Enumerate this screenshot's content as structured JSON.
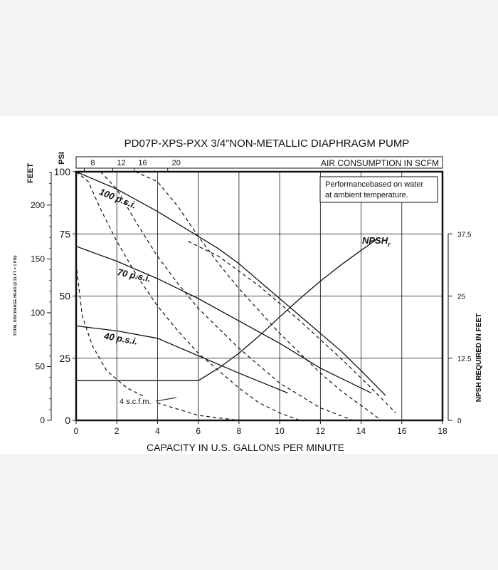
{
  "chart_data": {
    "type": "line",
    "title": "PD07P-XPS-PXX 3/4”NON-METALLIC DIAPHRAGM PUMP",
    "xlabel": "CAPACITY IN U.S. GALLONS PER MINUTE",
    "xlim": [
      0,
      18
    ],
    "x_ticks": [
      "0",
      "2",
      "4",
      "6",
      "8",
      "10",
      "12",
      "14",
      "16",
      "18"
    ],
    "y_left_outer": {
      "label": "FEET",
      "sublabel": "TOTAL DISCHARGE HEAD (2.31 FT = 1 PSI)",
      "ylim": [
        0,
        231
      ],
      "ticks": [
        {
          "value": 0,
          "label": "0"
        },
        {
          "value": 50,
          "label": "50"
        },
        {
          "value": 100,
          "label": "100"
        },
        {
          "value": 150,
          "label": "150"
        },
        {
          "value": 200,
          "label": "200"
        }
      ]
    },
    "y_left_inner": {
      "label": "PSI",
      "ylim": [
        0,
        100
      ],
      "ticks": [
        {
          "value": 0,
          "label": "0"
        },
        {
          "value": 25,
          "label": "25"
        },
        {
          "value": 50,
          "label": "50"
        },
        {
          "value": 75,
          "label": "75"
        },
        {
          "value": 100,
          "label": "100"
        }
      ]
    },
    "y_right": {
      "label": "NPSH REQUIRED IN FEET",
      "ylim": [
        0,
        50
      ],
      "ticks": [
        {
          "value": 0,
          "label": "0"
        },
        {
          "value": 12.5,
          "label": "12.5"
        },
        {
          "value": 25,
          "label": "25"
        },
        {
          "value": 37.5,
          "label": "37.5"
        }
      ]
    },
    "top_axis": {
      "label": "AIR CONSUMPTION IN SCFM",
      "ticks": [
        {
          "gpm": 0.4,
          "label": "8"
        },
        {
          "gpm": 1.8,
          "label": "12"
        },
        {
          "gpm": 2.85,
          "label": "16"
        },
        {
          "gpm": 4.5,
          "label": "20"
        }
      ]
    },
    "annotation": [
      "Performancebased on water",
      "at ambient temperature."
    ],
    "series": [
      {
        "name": "100 p.s.i.",
        "style": "solid",
        "label_text": "100 p.s.i.",
        "label_pos": [
          1.1,
          91
        ],
        "label_angle": 22,
        "x": [
          0,
          2,
          4,
          6,
          7,
          8,
          9,
          10,
          11,
          12,
          13,
          14,
          15.2
        ],
        "y": [
          100,
          93,
          84,
          74,
          69,
          63,
          56,
          49,
          42,
          35,
          28,
          20,
          10
        ]
      },
      {
        "name": "70 p.s.i.",
        "style": "solid",
        "label_text": "70 p.s.i.",
        "label_pos": [
          2.0,
          58.5
        ],
        "label_angle": 12,
        "x": [
          0,
          2,
          4,
          6,
          8,
          10,
          12,
          14.5
        ],
        "y": [
          70,
          64,
          57,
          49,
          40,
          31,
          21,
          11
        ]
      },
      {
        "name": "40 p.s.i.",
        "style": "solid",
        "label_text": "40 p.s.i.",
        "label_pos": [
          1.35,
          32.8
        ],
        "label_angle": 10,
        "x": [
          0,
          2,
          4,
          6,
          8,
          10.4
        ],
        "y": [
          38,
          36,
          33,
          26,
          19,
          11
        ]
      },
      {
        "name": "NPSHr",
        "style": "solid",
        "axis": "right",
        "label_text": "NPSH",
        "label_sub": "r",
        "label_pos": [
          14.05,
          35.5
        ],
        "label_angle": 0,
        "x": [
          0,
          6,
          7,
          8,
          9,
          10,
          11,
          12,
          13,
          14,
          14.8
        ],
        "y": [
          8,
          8,
          10.5,
          13.5,
          17,
          20.8,
          24.5,
          28,
          31.2,
          34.2,
          36.5
        ]
      },
      {
        "name": "8 scfm",
        "style": "dashed",
        "x": [
          0,
          0.3,
          0.8,
          1.5,
          2.5,
          4,
          6,
          8
        ],
        "y": [
          63,
          42,
          30,
          20,
          13,
          7,
          2,
          0
        ]
      },
      {
        "name": "12 scfm",
        "style": "dashed",
        "x": [
          0,
          0.6,
          1.2,
          2,
          3,
          4,
          5,
          6,
          7,
          8,
          9,
          10,
          11
        ],
        "y": [
          100,
          96,
          85,
          72,
          58,
          46,
          36,
          27,
          20,
          13,
          7,
          3,
          0
        ]
      },
      {
        "name": "16 scfm",
        "style": "dashed",
        "x": [
          1.2,
          2,
          3,
          4,
          5,
          6,
          7,
          8,
          9,
          10,
          11,
          12,
          13.6
        ],
        "y": [
          100,
          93,
          79,
          66,
          55,
          45,
          37,
          29,
          22,
          15,
          10,
          5,
          0
        ]
      },
      {
        "name": "20 scfm",
        "style": "dashed",
        "x": [
          2.9,
          4,
          5,
          6,
          7,
          8,
          9,
          10,
          11,
          12,
          13,
          14,
          15
        ],
        "y": [
          100,
          96,
          86,
          74,
          63,
          53,
          44,
          35,
          27,
          19,
          12,
          6,
          0
        ]
      },
      {
        "name": "extra-dashed",
        "style": "dashed",
        "x": [
          5.5,
          7,
          9,
          11,
          13,
          14.5,
          15.7
        ],
        "y": [
          72,
          66,
          54,
          40,
          25,
          13,
          3
        ]
      }
    ],
    "callout": {
      "text": "4 s.c.f.m."
    }
  }
}
